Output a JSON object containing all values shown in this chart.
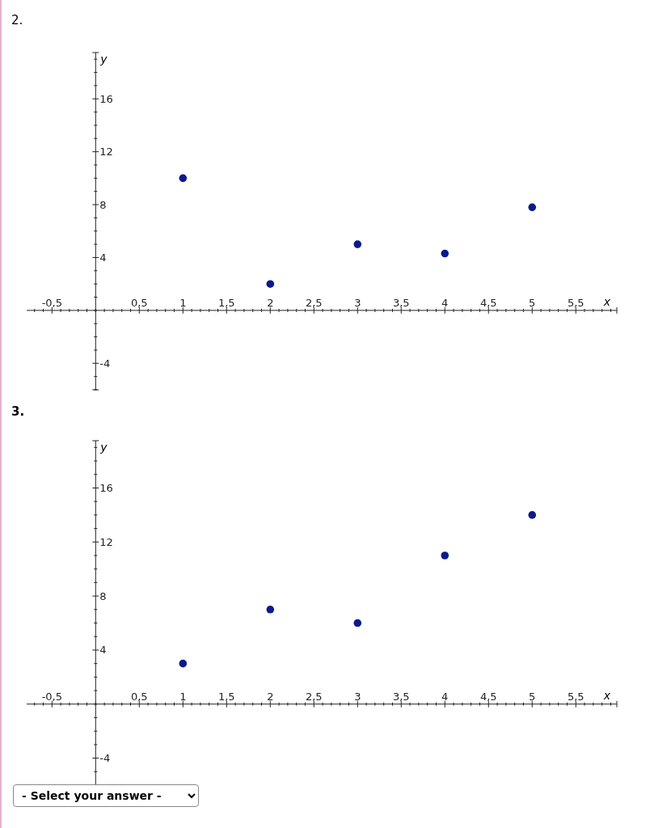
{
  "chart_data": [
    {
      "type": "scatter",
      "title": "2.",
      "xlabel": "x",
      "ylabel": "y",
      "marker": "circle",
      "x": [
        1,
        2,
        3,
        4,
        5
      ],
      "series": [
        {
          "color": "#0b1a8c",
          "values": [
            10,
            2,
            5,
            4.3,
            7.8
          ]
        }
      ],
      "xlim": [
        -0.79,
        5.97
      ],
      "ylim": [
        -6,
        19.5
      ],
      "xticks": [
        {
          "value": -0.7,
          "label": null
        },
        {
          "value": -0.6,
          "label": null
        },
        {
          "value": -0.5,
          "label": "-0,5"
        },
        {
          "value": -0.4,
          "label": null
        },
        {
          "value": -0.3,
          "label": null
        },
        {
          "value": -0.2,
          "label": null
        },
        {
          "value": -0.1,
          "label": null
        },
        {
          "value": 0,
          "label": null
        },
        {
          "value": 0.1,
          "label": null
        },
        {
          "value": 0.2,
          "label": null
        },
        {
          "value": 0.3,
          "label": null
        },
        {
          "value": 0.4,
          "label": null
        },
        {
          "value": 0.5,
          "label": "0,5"
        },
        {
          "value": 0.6,
          "label": null
        },
        {
          "value": 0.7,
          "label": null
        },
        {
          "value": 0.8,
          "label": null
        },
        {
          "value": 0.9,
          "label": null
        },
        1,
        {
          "value": 1.1,
          "label": null
        },
        {
          "value": 1.2,
          "label": null
        },
        {
          "value": 1.3,
          "label": null
        },
        {
          "value": 1.4,
          "label": null
        },
        {
          "value": 1.5,
          "label": "1,5"
        },
        {
          "value": 1.6,
          "label": null
        },
        {
          "value": 1.7,
          "label": null
        },
        {
          "value": 1.8,
          "label": null
        },
        {
          "value": 1.9,
          "label": null
        },
        2,
        {
          "value": 2.1,
          "label": null
        },
        {
          "value": 2.2,
          "label": null
        },
        {
          "value": 2.3,
          "label": null
        },
        {
          "value": 2.4,
          "label": null
        },
        {
          "value": 2.5,
          "label": "2,5"
        },
        {
          "value": 2.6,
          "label": null
        },
        {
          "value": 2.7,
          "label": null
        },
        {
          "value": 2.8,
          "label": null
        },
        {
          "value": 2.9,
          "label": null
        },
        3,
        {
          "value": 3.1,
          "label": null
        },
        {
          "value": 3.2,
          "label": null
        },
        {
          "value": 3.3,
          "label": null
        },
        {
          "value": 3.4,
          "label": null
        },
        {
          "value": 3.5,
          "label": "3,5"
        },
        {
          "value": 3.6,
          "label": null
        },
        {
          "value": 3.7,
          "label": null
        },
        {
          "value": 3.8,
          "label": null
        },
        {
          "value": 3.9,
          "label": null
        },
        4,
        {
          "value": 4.1,
          "label": null
        },
        {
          "value": 4.2,
          "label": null
        },
        {
          "value": 4.3,
          "label": null
        },
        {
          "value": 4.4,
          "label": null
        },
        {
          "value": 4.5,
          "label": "4,5"
        },
        {
          "value": 4.6,
          "label": null
        },
        {
          "value": 4.7,
          "label": null
        },
        {
          "value": 4.8,
          "label": null
        },
        {
          "value": 4.9,
          "label": null
        },
        5,
        {
          "value": 5.1,
          "label": null
        },
        {
          "value": 5.2,
          "label": null
        },
        {
          "value": 5.3,
          "label": null
        },
        {
          "value": 5.4,
          "label": null
        },
        {
          "value": 5.5,
          "label": "5,5"
        },
        {
          "value": 5.6,
          "label": null
        },
        {
          "value": 5.7,
          "label": null
        },
        {
          "value": 5.8,
          "label": null
        },
        {
          "value": 5.9,
          "label": null
        }
      ],
      "yticks": [
        {
          "value": -6,
          "label": null
        },
        {
          "value": -5,
          "label": null
        },
        -4,
        {
          "value": -3,
          "label": null
        },
        {
          "value": -2,
          "label": null
        },
        {
          "value": -1,
          "label": null
        },
        {
          "value": 0,
          "label": null
        },
        {
          "value": 1,
          "label": null
        },
        {
          "value": 2,
          "label": null
        },
        {
          "value": 3,
          "label": null
        },
        4,
        {
          "value": 5,
          "label": null
        },
        {
          "value": 6,
          "label": null
        },
        {
          "value": 7,
          "label": null
        },
        8,
        {
          "value": 9,
          "label": null
        },
        {
          "value": 10,
          "label": null
        },
        {
          "value": 11,
          "label": null
        },
        12,
        {
          "value": 13,
          "label": null
        },
        {
          "value": 14,
          "label": null
        },
        {
          "value": 15,
          "label": null
        },
        16,
        {
          "value": 17,
          "label": null
        },
        {
          "value": 18,
          "label": null
        },
        {
          "value": 19,
          "label": null
        }
      ]
    },
    {
      "type": "scatter",
      "title": "3.",
      "xlabel": "x",
      "ylabel": "y",
      "marker": "circle",
      "x": [
        1,
        2,
        3,
        4,
        5
      ],
      "series": [
        {
          "color": "#0b1a8c",
          "values": [
            3,
            7,
            6,
            11,
            14
          ]
        }
      ],
      "xlim": [
        -0.79,
        5.97
      ],
      "ylim": [
        -6,
        19.5
      ],
      "xticks": [
        {
          "value": -0.7,
          "label": null
        },
        {
          "value": -0.6,
          "label": null
        },
        {
          "value": -0.5,
          "label": "-0,5"
        },
        {
          "value": -0.4,
          "label": null
        },
        {
          "value": -0.3,
          "label": null
        },
        {
          "value": -0.2,
          "label": null
        },
        {
          "value": -0.1,
          "label": null
        },
        {
          "value": 0,
          "label": null
        },
        {
          "value": 0.1,
          "label": null
        },
        {
          "value": 0.2,
          "label": null
        },
        {
          "value": 0.3,
          "label": null
        },
        {
          "value": 0.4,
          "label": null
        },
        {
          "value": 0.5,
          "label": "0,5"
        },
        {
          "value": 0.6,
          "label": null
        },
        {
          "value": 0.7,
          "label": null
        },
        {
          "value": 0.8,
          "label": null
        },
        {
          "value": 0.9,
          "label": null
        },
        1,
        {
          "value": 1.1,
          "label": null
        },
        {
          "value": 1.2,
          "label": null
        },
        {
          "value": 1.3,
          "label": null
        },
        {
          "value": 1.4,
          "label": null
        },
        {
          "value": 1.5,
          "label": "1,5"
        },
        {
          "value": 1.6,
          "label": null
        },
        {
          "value": 1.7,
          "label": null
        },
        {
          "value": 1.8,
          "label": null
        },
        {
          "value": 1.9,
          "label": null
        },
        2,
        {
          "value": 2.1,
          "label": null
        },
        {
          "value": 2.2,
          "label": null
        },
        {
          "value": 2.3,
          "label": null
        },
        {
          "value": 2.4,
          "label": null
        },
        {
          "value": 2.5,
          "label": "2,5"
        },
        {
          "value": 2.6,
          "label": null
        },
        {
          "value": 2.7,
          "label": null
        },
        {
          "value": 2.8,
          "label": null
        },
        {
          "value": 2.9,
          "label": null
        },
        3,
        {
          "value": 3.1,
          "label": null
        },
        {
          "value": 3.2,
          "label": null
        },
        {
          "value": 3.3,
          "label": null
        },
        {
          "value": 3.4,
          "label": null
        },
        {
          "value": 3.5,
          "label": "3,5"
        },
        {
          "value": 3.6,
          "label": null
        },
        {
          "value": 3.7,
          "label": null
        },
        {
          "value": 3.8,
          "label": null
        },
        {
          "value": 3.9,
          "label": null
        },
        4,
        {
          "value": 4.1,
          "label": null
        },
        {
          "value": 4.2,
          "label": null
        },
        {
          "value": 4.3,
          "label": null
        },
        {
          "value": 4.4,
          "label": null
        },
        {
          "value": 4.5,
          "label": "4,5"
        },
        {
          "value": 4.6,
          "label": null
        },
        {
          "value": 4.7,
          "label": null
        },
        {
          "value": 4.8,
          "label": null
        },
        {
          "value": 4.9,
          "label": null
        },
        5,
        {
          "value": 5.1,
          "label": null
        },
        {
          "value": 5.2,
          "label": null
        },
        {
          "value": 5.3,
          "label": null
        },
        {
          "value": 5.4,
          "label": null
        },
        {
          "value": 5.5,
          "label": "5,5"
        },
        {
          "value": 5.6,
          "label": null
        },
        {
          "value": 5.7,
          "label": null
        },
        {
          "value": 5.8,
          "label": null
        },
        {
          "value": 5.9,
          "label": null
        }
      ],
      "yticks": [
        {
          "value": -6,
          "label": null
        },
        {
          "value": -5,
          "label": null
        },
        -4,
        {
          "value": -3,
          "label": null
        },
        {
          "value": -2,
          "label": null
        },
        {
          "value": -1,
          "label": null
        },
        {
          "value": 0,
          "label": null
        },
        {
          "value": 1,
          "label": null
        },
        {
          "value": 2,
          "label": null
        },
        {
          "value": 3,
          "label": null
        },
        4,
        {
          "value": 5,
          "label": null
        },
        {
          "value": 6,
          "label": null
        },
        {
          "value": 7,
          "label": null
        },
        8,
        {
          "value": 9,
          "label": null
        },
        {
          "value": 10,
          "label": null
        },
        {
          "value": 11,
          "label": null
        },
        12,
        {
          "value": 13,
          "label": null
        },
        {
          "value": 14,
          "label": null
        },
        {
          "value": 15,
          "label": null
        },
        16,
        {
          "value": 17,
          "label": null
        },
        {
          "value": 18,
          "label": null
        },
        {
          "value": 19,
          "label": null
        }
      ],
      "annotations": [
        "- Select your answer -"
      ]
    }
  ]
}
